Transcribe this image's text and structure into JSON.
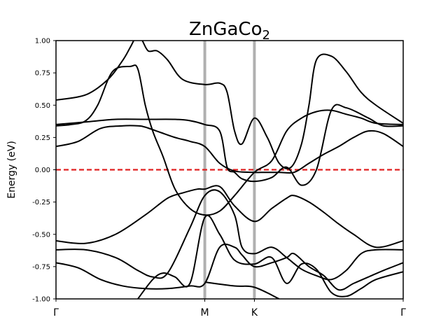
{
  "chart_data": {
    "type": "line",
    "title": "ZnGaCo",
    "title_subscript": "2",
    "ylabel": "Energy (eV)",
    "xlabel": "",
    "ylim": [
      -1.0,
      1.0
    ],
    "y_ticks": [
      "1.00",
      "0.75",
      "0.50",
      "0.25",
      "0.00",
      "-0.25",
      "-0.50",
      "-0.75",
      "-1.00"
    ],
    "y_tick_values": [
      1.0,
      0.75,
      0.5,
      0.25,
      0.0,
      -0.25,
      -0.5,
      -0.75,
      -1.0
    ],
    "high_symmetry_points": [
      {
        "label": "Γ",
        "k": 0.0
      },
      {
        "label": "M",
        "k": 1.0
      },
      {
        "label": "K",
        "k": 1.3333
      },
      {
        "label": "Γ",
        "k": 2.3333
      }
    ],
    "fermi_level": 0.0,
    "colors": {
      "bands": "#000000",
      "fermi": "#e02020",
      "hs_lines": "#b0b0b0"
    },
    "series": [
      {
        "x": [
          0,
          0.15,
          0.3,
          0.45,
          0.55,
          0.6,
          0.7,
          0.8,
          0.9,
          1.0,
          1.1,
          1.2,
          1.3333,
          1.4,
          1.5,
          1.6,
          1.7,
          1.8,
          1.9,
          2.0,
          2.1,
          2.2,
          2.3333
        ],
        "y": [
          0.18,
          0.22,
          0.32,
          0.34,
          0.34,
          0.33,
          0.29,
          0.25,
          0.22,
          0.18,
          0.05,
          -0.01,
          -0.02,
          -0.02,
          -0.02,
          -0.02,
          0.05,
          0.12,
          0.18,
          0.25,
          0.3,
          0.28,
          0.18
        ]
      },
      {
        "x": [
          0,
          0.2,
          0.4,
          0.6,
          0.8,
          0.9,
          1.0,
          1.1,
          1.15,
          1.2,
          1.25,
          1.3333,
          1.45,
          1.55,
          1.65,
          1.75,
          1.85,
          1.95,
          2.1,
          2.2,
          2.3333
        ],
        "y": [
          0.35,
          0.37,
          0.39,
          0.39,
          0.39,
          0.38,
          0.35,
          0.3,
          0.02,
          -0.02,
          -0.07,
          -0.09,
          -0.06,
          0.02,
          -0.12,
          0.0,
          0.46,
          0.48,
          0.4,
          0.34,
          0.34
        ]
      },
      {
        "x": [
          0,
          0.1,
          0.2,
          0.28,
          0.38,
          0.5,
          0.55,
          0.6,
          0.65,
          0.72,
          0.8,
          0.9,
          1.0,
          1.1,
          1.2,
          1.3333,
          1.45,
          1.55,
          1.65,
          1.75,
          1.85,
          1.95,
          2.05,
          2.15,
          2.3333
        ],
        "y": [
          0.34,
          0.35,
          0.38,
          0.5,
          0.76,
          0.8,
          0.78,
          0.5,
          0.3,
          0.1,
          -0.15,
          -0.3,
          -0.35,
          -0.32,
          -0.2,
          -0.02,
          0.07,
          0.3,
          0.4,
          0.45,
          0.46,
          0.43,
          0.4,
          0.36,
          0.35
        ]
      },
      {
        "x": [
          0,
          0.2,
          0.35,
          0.45,
          0.5,
          0.55,
          0.58,
          0.62,
          0.68,
          0.75,
          0.85,
          1.0,
          1.1,
          1.15,
          1.2,
          1.25,
          1.3333,
          1.42,
          1.5,
          1.58,
          1.65,
          1.7,
          1.75,
          1.85,
          1.95,
          2.05,
          2.15,
          2.3333
        ],
        "y": [
          0.54,
          0.58,
          0.7,
          0.85,
          0.95,
          1.05,
          1.0,
          0.92,
          0.92,
          0.85,
          0.7,
          0.66,
          0.67,
          0.6,
          0.3,
          0.2,
          0.4,
          0.25,
          0.05,
          0.02,
          0.2,
          0.5,
          0.85,
          0.88,
          0.76,
          0.6,
          0.5,
          0.36
        ]
      },
      {
        "x": [
          0,
          0.2,
          0.4,
          0.6,
          0.75,
          0.85,
          0.95,
          1.0,
          1.1,
          1.2,
          1.3333,
          1.45,
          1.55,
          1.6,
          1.7,
          1.8,
          1.9,
          2.0,
          2.15,
          2.3333
        ],
        "y": [
          -0.55,
          -0.57,
          -0.5,
          -0.35,
          -0.22,
          -0.18,
          -0.15,
          -0.15,
          -0.13,
          -0.28,
          -0.4,
          -0.3,
          -0.22,
          -0.2,
          -0.25,
          -0.33,
          -0.42,
          -0.5,
          -0.6,
          -0.55
        ]
      },
      {
        "x": [
          0,
          0.2,
          0.4,
          0.55,
          0.65,
          0.75,
          0.9,
          1.0,
          1.1,
          1.2,
          1.25,
          1.3333,
          1.45,
          1.55,
          1.65,
          1.75,
          1.85,
          1.95,
          2.05,
          2.15,
          2.3333
        ],
        "y": [
          -0.62,
          -0.62,
          -0.68,
          -0.78,
          -0.83,
          -0.8,
          -0.45,
          -0.2,
          -0.17,
          -0.35,
          -0.6,
          -0.65,
          -0.6,
          -0.68,
          -0.77,
          -0.82,
          -0.85,
          -0.78,
          -0.65,
          -0.62,
          -0.62
        ]
      },
      {
        "x": [
          0,
          0.15,
          0.3,
          0.45,
          0.6,
          0.75,
          0.9,
          1.0,
          1.1,
          1.2,
          1.25,
          1.3333,
          1.45,
          1.55,
          1.6,
          1.7,
          1.8,
          1.9,
          2.0,
          2.1,
          2.2,
          2.3333
        ],
        "y": [
          -0.72,
          -0.76,
          -0.85,
          -0.9,
          -0.92,
          -0.92,
          -0.9,
          -0.88,
          -0.6,
          -0.6,
          -0.66,
          -0.75,
          -0.72,
          -0.68,
          -0.65,
          -0.75,
          -0.82,
          -0.93,
          -0.88,
          -0.83,
          -0.78,
          -0.72
        ]
      },
      {
        "x": [
          0.55,
          0.65,
          0.72,
          0.8,
          0.9,
          1.0,
          1.1,
          1.2,
          1.3333,
          1.45,
          1.55,
          1.65,
          1.75,
          1.85,
          1.95,
          2.05,
          2.15,
          2.3333
        ],
        "y": [
          -1.0,
          -0.85,
          -0.8,
          -0.83,
          -0.88,
          -0.37,
          -0.5,
          -0.7,
          -0.73,
          -0.68,
          -0.88,
          -0.73,
          -0.77,
          -0.95,
          -0.98,
          -0.92,
          -0.85,
          -0.79
        ]
      },
      {
        "x": [
          1.0,
          1.2,
          1.3333,
          1.5
        ],
        "y": [
          -0.87,
          -0.9,
          -0.91,
          -1.0
        ]
      }
    ]
  }
}
